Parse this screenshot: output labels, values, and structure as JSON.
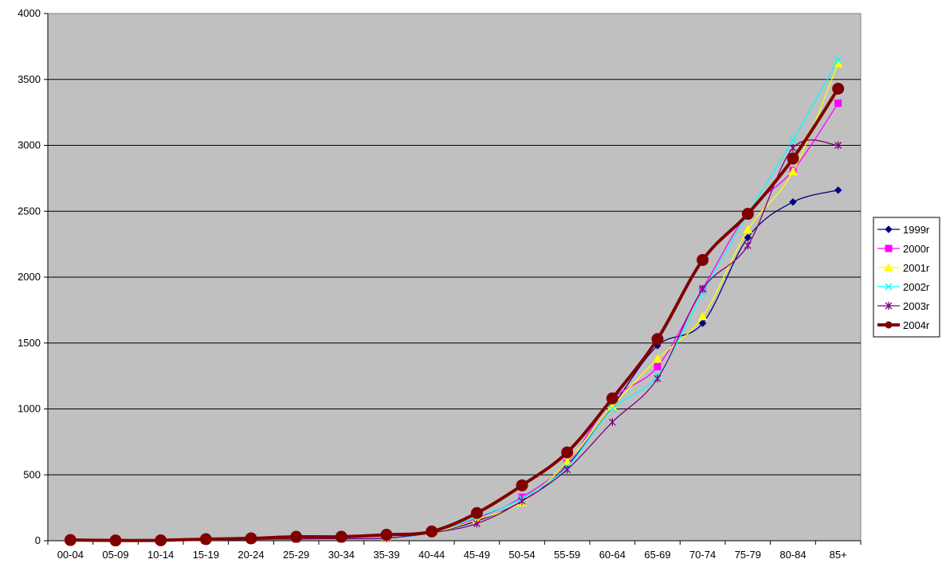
{
  "chart_data": {
    "type": "line",
    "title": "",
    "xlabel": "",
    "ylabel": "",
    "categories": [
      "00-04",
      "05-09",
      "10-14",
      "15-19",
      "20-24",
      "25-29",
      "30-34",
      "35-39",
      "40-44",
      "45-49",
      "50-54",
      "55-59",
      "60-64",
      "65-69",
      "70-74",
      "75-79",
      "80-84",
      "85+"
    ],
    "ylim": [
      0,
      4000
    ],
    "yticks": [
      0,
      500,
      1000,
      1500,
      2000,
      2500,
      3000,
      3500,
      4000
    ],
    "grid": "horizontal",
    "plot_background": "#c0c0c0",
    "legend_position": "right",
    "series": [
      {
        "name": "1999r",
        "color": "#000080",
        "marker": "diamond",
        "values": [
          2,
          1,
          2,
          5,
          10,
          15,
          15,
          20,
          60,
          150,
          300,
          570,
          1020,
          1480,
          1650,
          2300,
          2570,
          2660
        ]
      },
      {
        "name": "2000r",
        "color": "#ff00ff",
        "marker": "square",
        "values": [
          1,
          1,
          1,
          4,
          8,
          12,
          14,
          18,
          62,
          170,
          330,
          590,
          1070,
          1320,
          1910,
          2490,
          2810,
          3320
        ]
      },
      {
        "name": "2001r",
        "color": "#ffff00",
        "marker": "triangle",
        "values": [
          1,
          0,
          1,
          5,
          9,
          14,
          15,
          20,
          58,
          160,
          290,
          600,
          1020,
          1380,
          1700,
          2360,
          2800,
          3620
        ]
      },
      {
        "name": "2002r",
        "color": "#00ffff",
        "marker": "x",
        "values": [
          1,
          1,
          1,
          4,
          9,
          13,
          14,
          19,
          60,
          180,
          320,
          560,
          1000,
          1250,
          1880,
          2480,
          3040,
          3650
        ]
      },
      {
        "name": "2003r",
        "color": "#800080",
        "marker": "star",
        "values": [
          2,
          1,
          1,
          5,
          10,
          14,
          15,
          20,
          60,
          130,
          300,
          540,
          900,
          1230,
          1910,
          2240,
          2980,
          3000
        ]
      },
      {
        "name": "2004r",
        "color": "#800000",
        "marker": "circle",
        "values": [
          5,
          2,
          3,
          12,
          18,
          30,
          30,
          45,
          70,
          210,
          420,
          670,
          1080,
          1530,
          2130,
          2480,
          2900,
          3430
        ]
      }
    ]
  }
}
